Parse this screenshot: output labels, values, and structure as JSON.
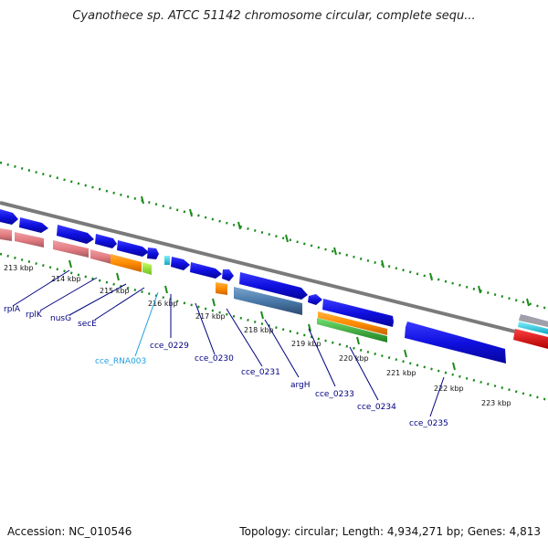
{
  "title": "Cyanothece sp. ATCC 51142 chromosome circular, complete sequ...",
  "footer": {
    "accession": "Accession: NC_010546",
    "summary": "Topology: circular; Length: 4,934,271 bp; Genes: 4,813"
  },
  "colors": {
    "backbone": "#7a7a7a",
    "tick": "#1a8a1a",
    "cds": "#1010e0",
    "rrna": "#e07a80",
    "trna": "#ff8c00",
    "ncrna": "#20c8e0",
    "pseudo": "#4a7aaa",
    "green": "#30b030",
    "red": "#e01010",
    "label_dark": "#000080",
    "label_light": "#20a0e0"
  },
  "kbp_labels": [
    "213 kbp",
    "214 kbp",
    "215 kbp",
    "216 kbp",
    "217 kbp",
    "218 kbp",
    "219 kbp",
    "220 kbp",
    "221 kbp",
    "222 kbp",
    "223 kbp"
  ],
  "genes": [
    {
      "label": "rplA",
      "color": "dark"
    },
    {
      "label": "rplK",
      "color": "dark"
    },
    {
      "label": "nusG",
      "color": "dark"
    },
    {
      "label": "secE",
      "color": "dark"
    },
    {
      "label": "cce_RNA003",
      "color": "light"
    },
    {
      "label": "cce_0229",
      "color": "dark"
    },
    {
      "label": "cce_0230",
      "color": "dark"
    },
    {
      "label": "cce_0231",
      "color": "dark"
    },
    {
      "label": "argH",
      "color": "dark"
    },
    {
      "label": "cce_0233",
      "color": "dark"
    },
    {
      "label": "cce_0234",
      "color": "dark"
    },
    {
      "label": "cce_0235",
      "color": "dark"
    }
  ]
}
